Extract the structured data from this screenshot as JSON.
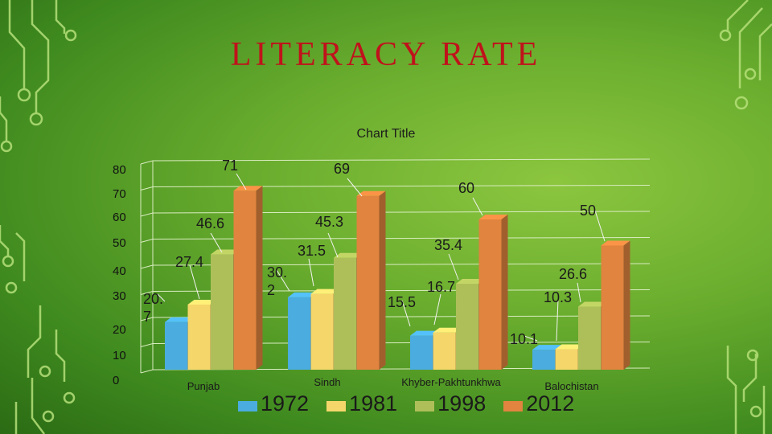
{
  "slide": {
    "title": "LITERACY  RATE"
  },
  "chart_data": {
    "type": "bar",
    "title": "Chart Title",
    "categories": [
      "Punjab",
      "Sindh",
      "Khyber-Pakhtunkhwa",
      "Balochistan"
    ],
    "series": [
      {
        "name": "1972",
        "color": "#4bacdf",
        "values": [
          20.7,
          30.2,
          15.5,
          10.1
        ]
      },
      {
        "name": "1981",
        "color": "#f5d66b",
        "values": [
          27.4,
          31.5,
          16.7,
          10.3
        ]
      },
      {
        "name": "1998",
        "color": "#aebf5a",
        "values": [
          46.6,
          45.3,
          35.4,
          26.6
        ]
      },
      {
        "name": "2012",
        "color": "#e0843f",
        "values": [
          71,
          69,
          60,
          50
        ]
      }
    ],
    "data_labels": [
      [
        "20. 7",
        "27.4",
        "46.6",
        "71"
      ],
      [
        "30. 2",
        "31.5",
        "45.3",
        "69"
      ],
      [
        "15.5",
        "16.7",
        "35.4",
        "60"
      ],
      [
        "10.1",
        "10.3",
        "26.6",
        "50"
      ]
    ],
    "yticks": [
      "0",
      "10",
      "20",
      "30",
      "40",
      "50",
      "60",
      "70",
      "80"
    ],
    "ylim": [
      0,
      80
    ],
    "grid": true,
    "legend_position": "bottom",
    "view": "3d-columns"
  }
}
